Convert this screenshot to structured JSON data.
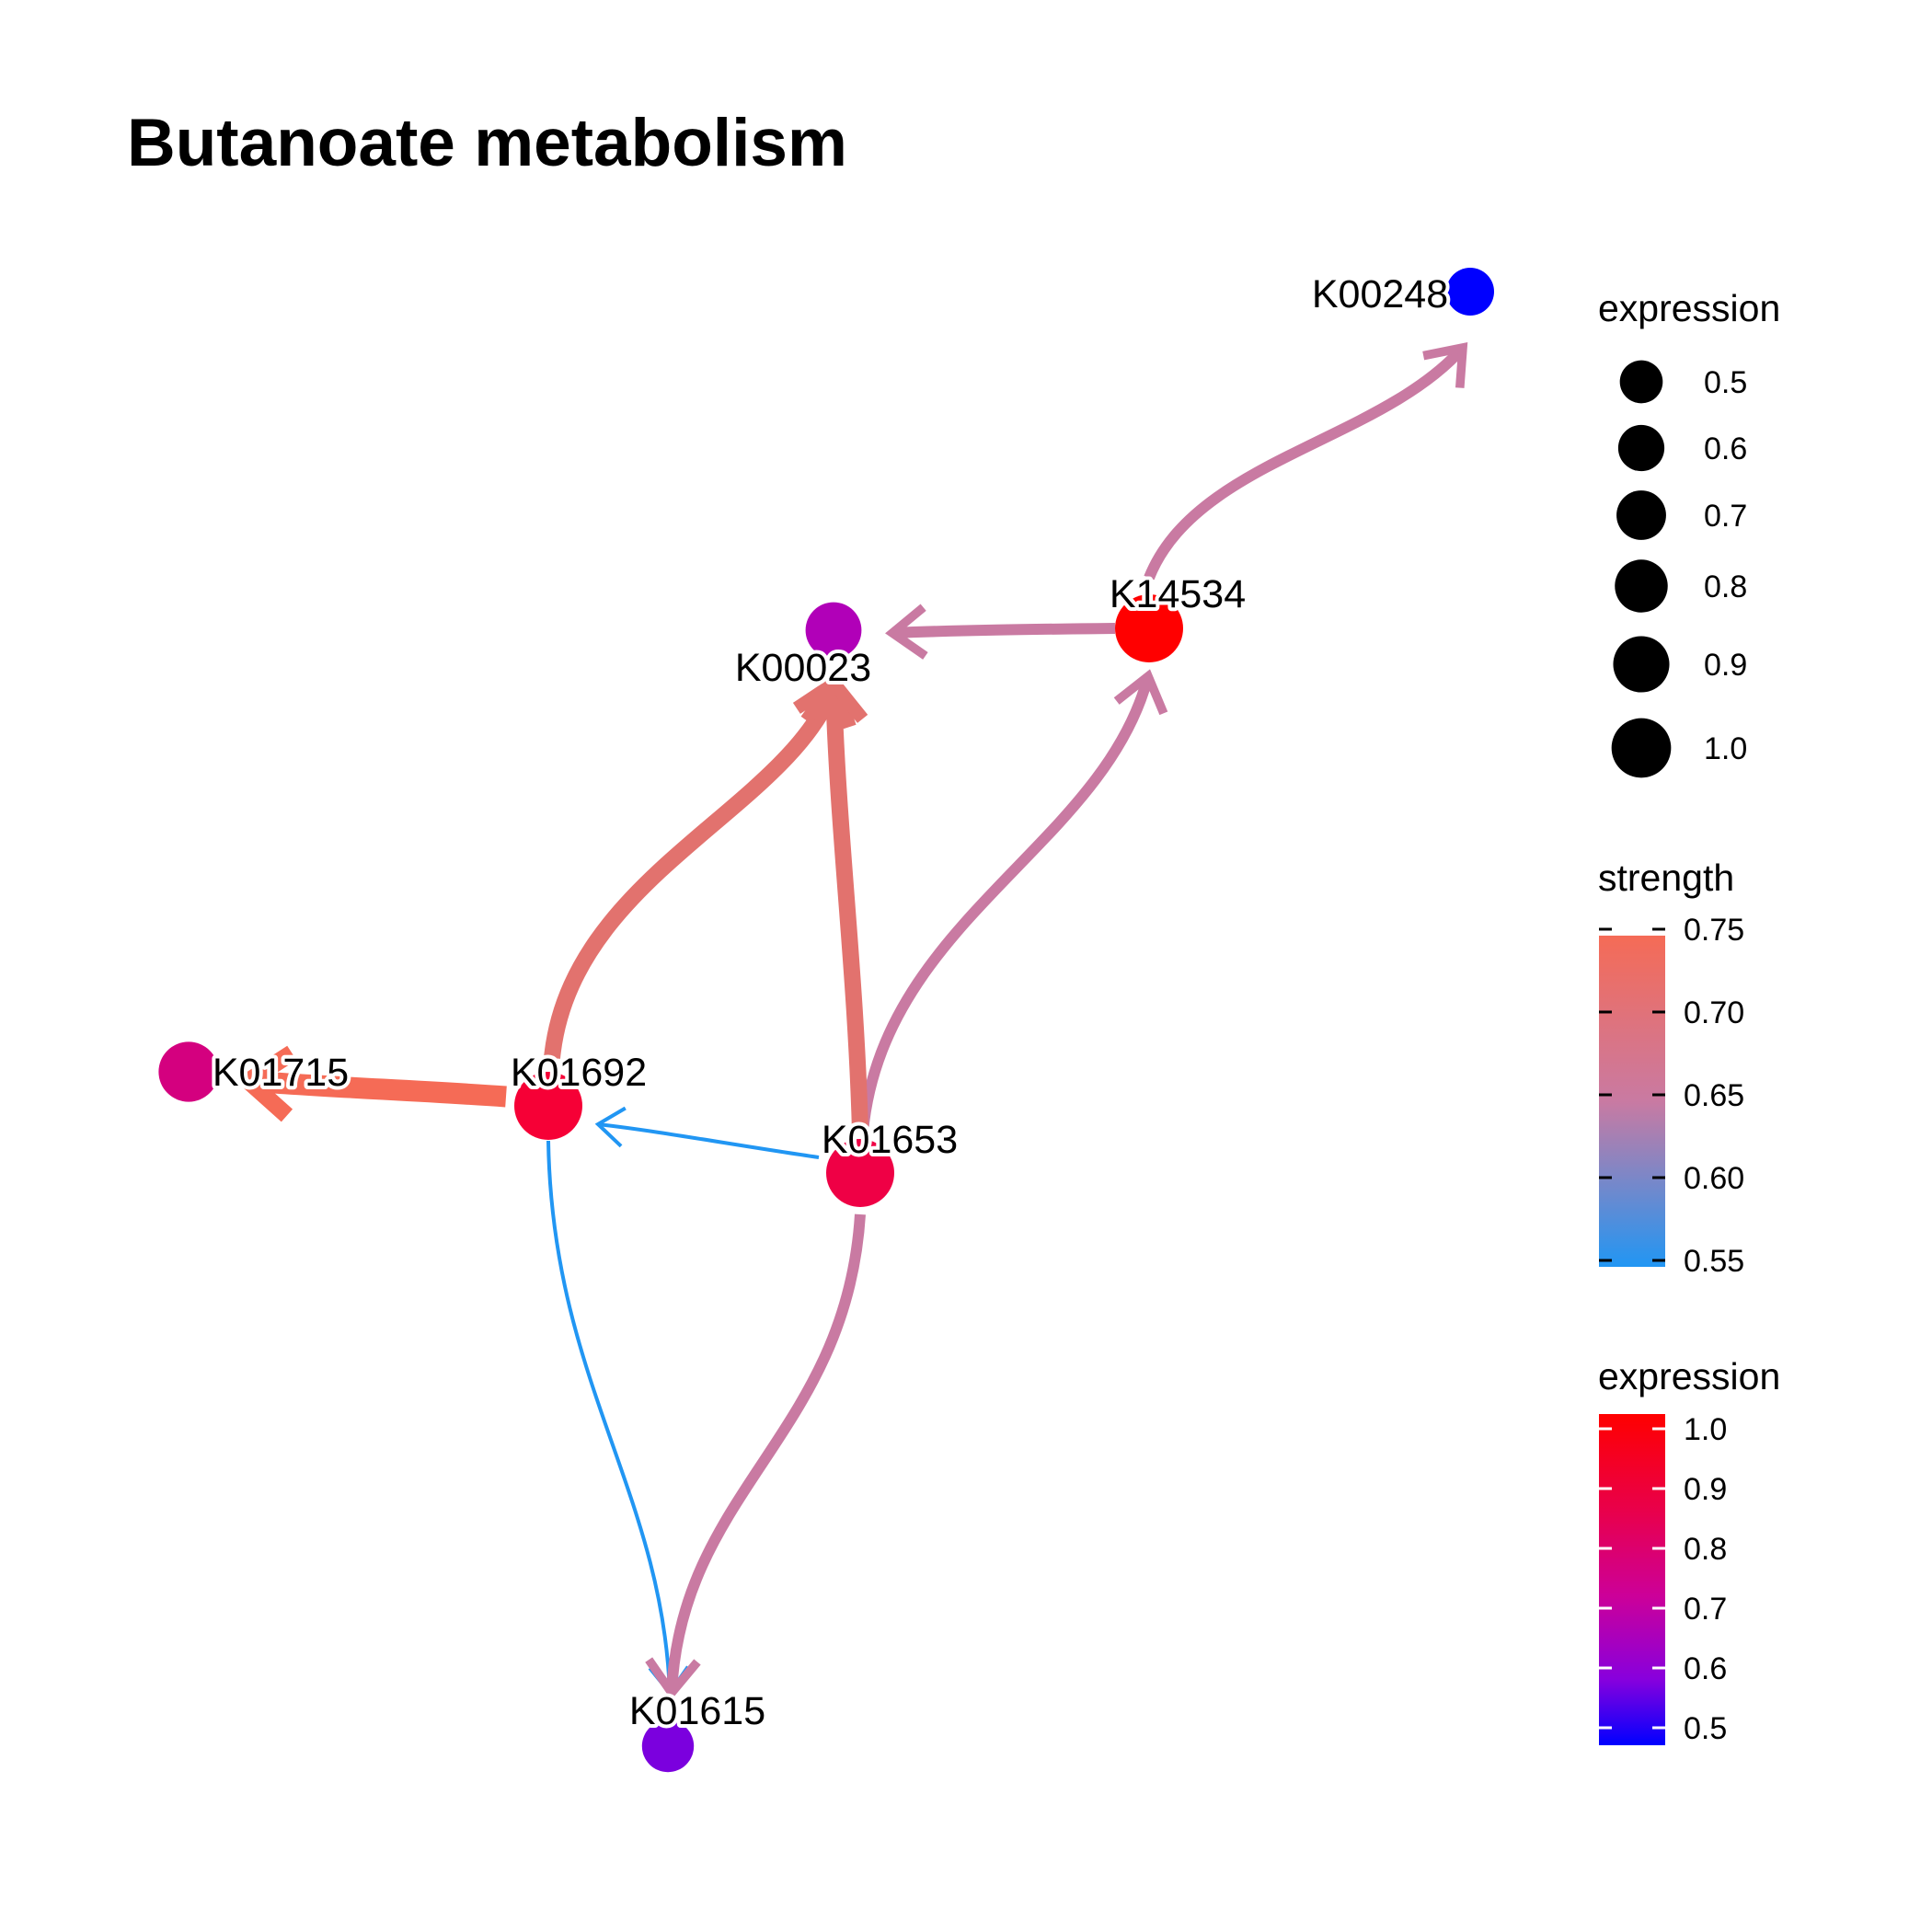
{
  "title": "Butanoate metabolism",
  "nodes": [
    {
      "id": "K00248",
      "label": "K00248",
      "expression": 0.5,
      "color": "#0000ff"
    },
    {
      "id": "K14534",
      "label": "K14534",
      "expression": 1.0,
      "color": "#ff0000"
    },
    {
      "id": "K00023",
      "label": "K00023",
      "expression": 0.7,
      "color": "#b100b8"
    },
    {
      "id": "K01715",
      "label": "K01715",
      "expression": 0.8,
      "color": "#d4007f"
    },
    {
      "id": "K01692",
      "label": "K01692",
      "expression": 1.0,
      "color": "#f60036"
    },
    {
      "id": "K01653",
      "label": "K01653",
      "expression": 1.0,
      "color": "#ef0045"
    },
    {
      "id": "K01615",
      "label": "K01615",
      "expression": 0.6,
      "color": "#7b00de"
    }
  ],
  "edges": [
    {
      "from": "K14534",
      "to": "K00248",
      "strength": 0.63,
      "color": "#c97aa2"
    },
    {
      "from": "K14534",
      "to": "K00023",
      "strength": 0.63,
      "color": "#c97aa2"
    },
    {
      "from": "K01653",
      "to": "K14534",
      "strength": 0.63,
      "color": "#c97aa2"
    },
    {
      "from": "K01692",
      "to": "K00023",
      "strength": 0.69,
      "color": "#e2726e"
    },
    {
      "from": "K01653",
      "to": "K00023",
      "strength": 0.69,
      "color": "#e2726e"
    },
    {
      "from": "K01692",
      "to": "K01715",
      "strength": 0.74,
      "color": "#f56b56"
    },
    {
      "from": "K01653",
      "to": "K01692",
      "strength": 0.55,
      "color": "#2196f3"
    },
    {
      "from": "K01692",
      "to": "K01615",
      "strength": 0.55,
      "color": "#2196f3"
    },
    {
      "from": "K01653",
      "to": "K01615",
      "strength": 0.63,
      "color": "#c97aa2"
    }
  ],
  "legend": {
    "size": {
      "title": "expression",
      "entries": [
        "0.5",
        "0.6",
        "0.7",
        "0.8",
        "0.9",
        "1.0"
      ]
    },
    "strength": {
      "title": "strength",
      "ticks": [
        "0.75",
        "0.70",
        "0.65",
        "0.60",
        "0.55"
      ],
      "colors": [
        "#f56b56",
        "#c97aa2",
        "#2196f3"
      ]
    },
    "color": {
      "title": "expression",
      "ticks": [
        "1.0",
        "0.9",
        "0.8",
        "0.7",
        "0.6",
        "0.5"
      ],
      "colors": [
        "#ff0000",
        "#e8004d",
        "#cc0099",
        "#8800dd",
        "#0000ff"
      ]
    }
  }
}
